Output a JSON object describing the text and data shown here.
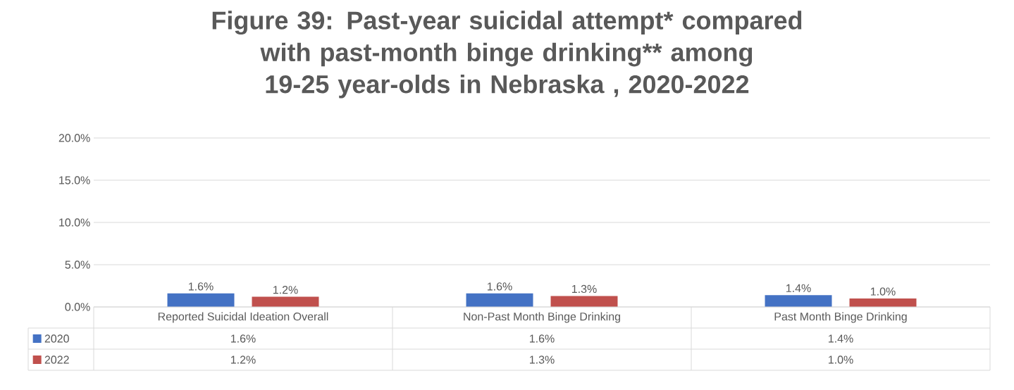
{
  "chart_data": {
    "type": "bar",
    "title": "Figure 39: Past-year suicidal attempt* compared with past-month binge drinking** among 19-25 year-olds in Nebraska , 2020-2022",
    "categories": [
      "Reported Suicidal Ideation Overall",
      "Non-Past Month Binge Drinking",
      "Past Month Binge Drinking"
    ],
    "series": [
      {
        "name": "2020",
        "color": "#4472c4",
        "values": [
          1.6,
          1.6,
          1.4
        ],
        "value_labels": [
          "1.6%",
          "1.6%",
          "1.4%"
        ]
      },
      {
        "name": "2022",
        "color": "#c0504d",
        "values": [
          1.2,
          1.3,
          1.0
        ],
        "value_labels": [
          "1.2%",
          "1.3%",
          "1.0%"
        ]
      }
    ],
    "ylim": [
      0,
      20
    ],
    "yticks": [
      {
        "value": 0,
        "label": "0.0%"
      },
      {
        "value": 5,
        "label": "5.0%"
      },
      {
        "value": 10,
        "label": "10.0%"
      },
      {
        "value": 15,
        "label": "15.0%"
      },
      {
        "value": 20,
        "label": "20.0%"
      }
    ],
    "grid": "y",
    "legend": "bottom left"
  }
}
